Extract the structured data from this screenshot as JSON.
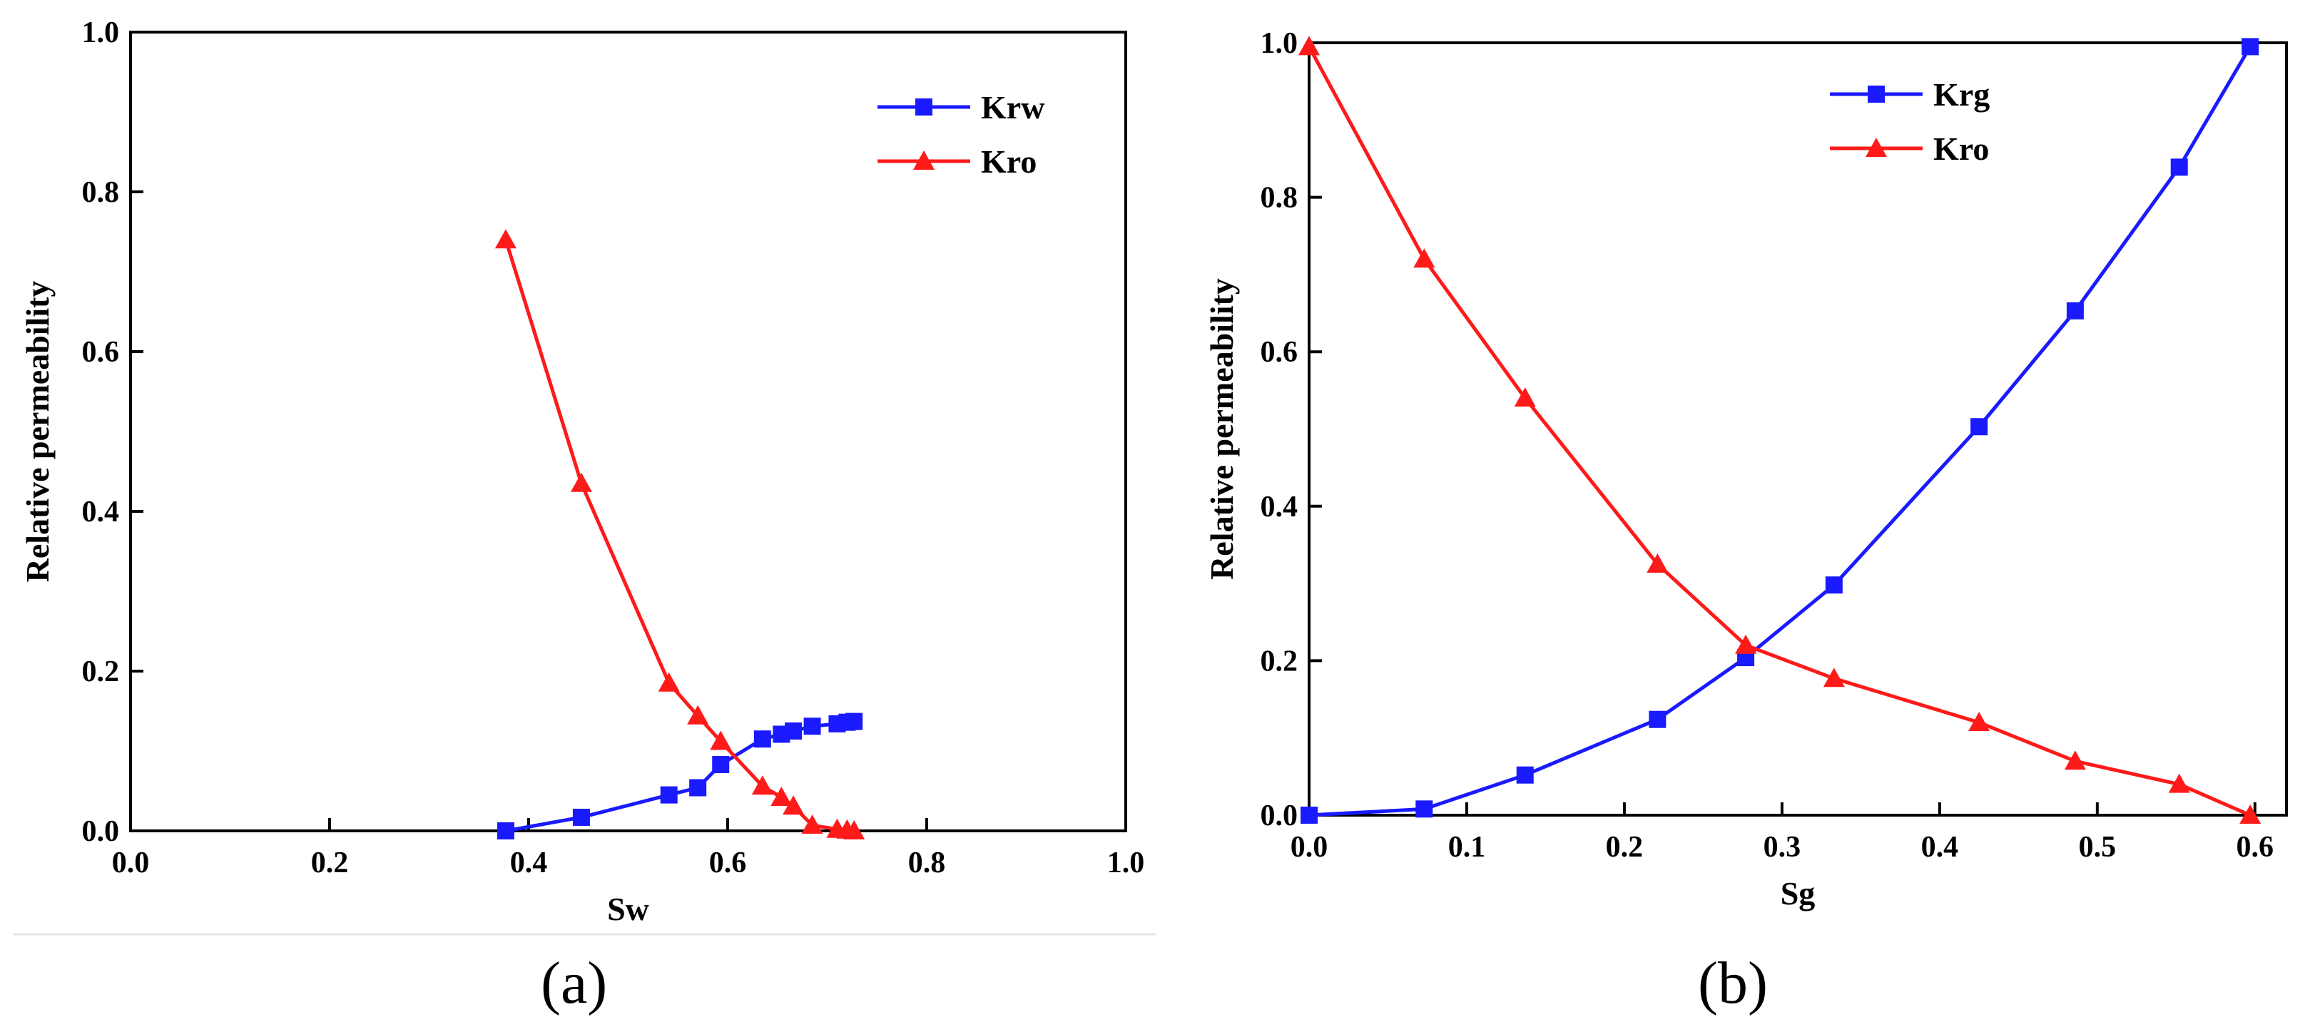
{
  "colors": {
    "blue": "#1a1aff",
    "red": "#ff1a1a",
    "axis": "#000000"
  },
  "chart_data": [
    {
      "type": "line",
      "panel_label": "(a)",
      "xlabel": "Sw",
      "ylabel": "Relative permeability",
      "xlim": [
        0.0,
        1.0
      ],
      "ylim": [
        0.0,
        1.0
      ],
      "xticks": [
        "0.0",
        "0.2",
        "0.4",
        "0.6",
        "0.8",
        "1.0"
      ],
      "yticks": [
        "0.0",
        "0.2",
        "0.4",
        "0.6",
        "0.8",
        "1.0"
      ],
      "legend_position": "top-right",
      "grid": false,
      "series": [
        {
          "name": "Krw",
          "color": "#1a1aff",
          "marker": "square",
          "x": [
            0.377,
            0.453,
            0.541,
            0.57,
            0.593,
            0.635,
            0.654,
            0.666,
            0.685,
            0.71,
            0.72,
            0.727
          ],
          "y": [
            0.0,
            0.017,
            0.045,
            0.054,
            0.083,
            0.115,
            0.121,
            0.125,
            0.131,
            0.134,
            0.136,
            0.137
          ]
        },
        {
          "name": "Kro",
          "color": "#ff1a1a",
          "marker": "triangle",
          "x": [
            0.377,
            0.453,
            0.541,
            0.57,
            0.593,
            0.635,
            0.654,
            0.666,
            0.685,
            0.71,
            0.72,
            0.727
          ],
          "y": [
            0.74,
            0.435,
            0.185,
            0.144,
            0.112,
            0.056,
            0.042,
            0.031,
            0.007,
            0.002,
            0.001,
            0.0
          ]
        }
      ]
    },
    {
      "type": "line",
      "panel_label": "(b)",
      "xlabel": "Sg",
      "ylabel": "Relative permeability",
      "xlim": [
        0.0,
        0.62
      ],
      "ylim": [
        0.0,
        1.0
      ],
      "xticks": [
        "0.0",
        "0.1",
        "0.2",
        "0.3",
        "0.4",
        "0.5",
        "0.6"
      ],
      "yticks": [
        "0.0",
        "0.2",
        "0.4",
        "0.6",
        "0.8",
        "1.0"
      ],
      "legend_position": "top-center",
      "grid": false,
      "series": [
        {
          "name": "Krg",
          "color": "#1a1aff",
          "marker": "square",
          "x": [
            0.0,
            0.073,
            0.137,
            0.221,
            0.277,
            0.333,
            0.425,
            0.486,
            0.552,
            0.597
          ],
          "y": [
            0.0,
            0.008,
            0.052,
            0.124,
            0.204,
            0.298,
            0.503,
            0.653,
            0.839,
            0.995
          ]
        },
        {
          "name": "Kro",
          "color": "#ff1a1a",
          "marker": "triangle",
          "x": [
            0.0,
            0.073,
            0.137,
            0.221,
            0.277,
            0.333,
            0.425,
            0.486,
            0.552,
            0.597
          ],
          "y": [
            0.995,
            0.72,
            0.54,
            0.325,
            0.22,
            0.177,
            0.12,
            0.07,
            0.04,
            0.0
          ]
        }
      ]
    }
  ]
}
